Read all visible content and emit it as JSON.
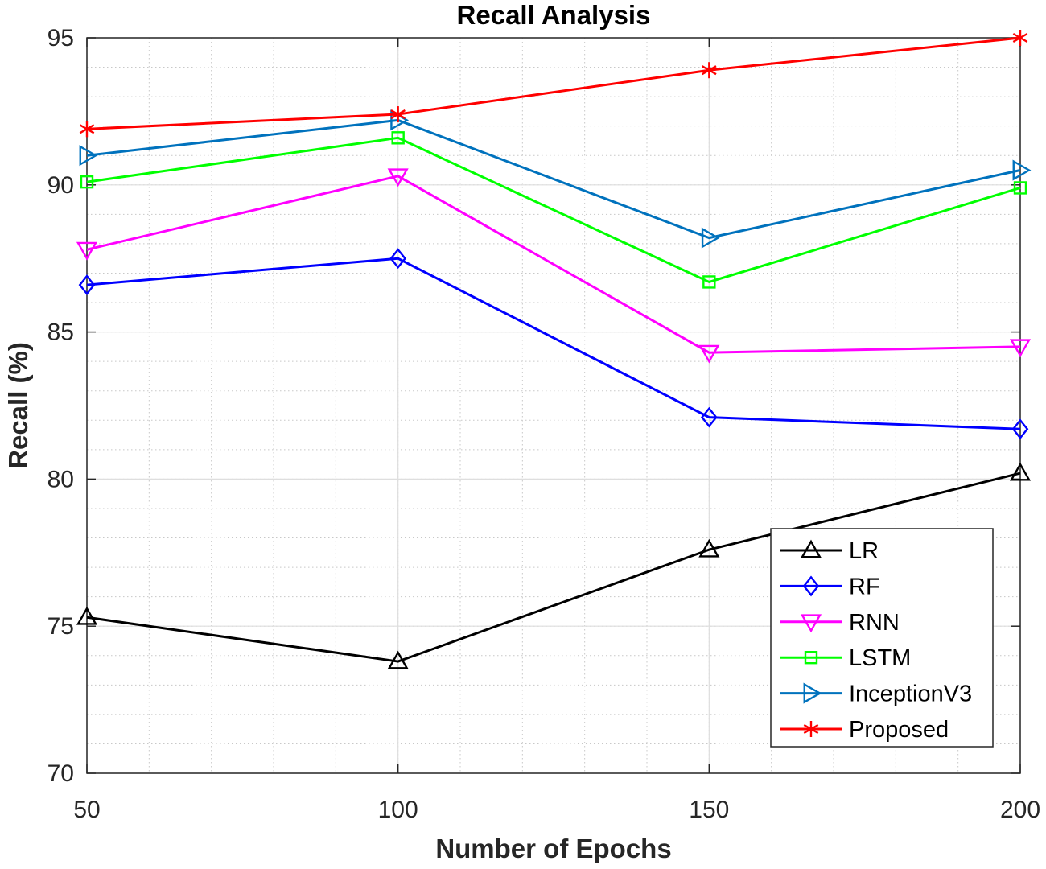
{
  "chart_data": {
    "type": "line",
    "title": "Recall Analysis",
    "xlabel": "Number of Epochs",
    "ylabel": "Recall (%)",
    "x": [
      50,
      100,
      150,
      200
    ],
    "xticks": [
      "50",
      "100",
      "150",
      "200"
    ],
    "yticks": [
      "70",
      "75",
      "80",
      "85",
      "90",
      "95"
    ],
    "xlim": [
      50,
      200
    ],
    "ylim": [
      70,
      95
    ],
    "grid": true,
    "minor_grid": true,
    "legend_position": "bottom-right",
    "series": [
      {
        "name": "LR",
        "color": "#000000",
        "marker": "triangle-up",
        "values": [
          75.3,
          73.8,
          77.6,
          80.2
        ]
      },
      {
        "name": "RF",
        "color": "#0000ff",
        "marker": "diamond",
        "values": [
          86.6,
          87.5,
          82.1,
          81.7
        ]
      },
      {
        "name": "RNN",
        "color": "#ff00ff",
        "marker": "triangle-down",
        "values": [
          87.8,
          90.3,
          84.3,
          84.5
        ]
      },
      {
        "name": "LSTM",
        "color": "#00ff00",
        "marker": "square",
        "values": [
          90.1,
          91.6,
          86.7,
          89.9
        ]
      },
      {
        "name": "InceptionV3",
        "color": "#0072bd",
        "marker": "triangle-right",
        "values": [
          91.0,
          92.2,
          88.2,
          90.5
        ]
      },
      {
        "name": "Proposed",
        "color": "#ff0000",
        "marker": "asterisk",
        "values": [
          91.9,
          92.4,
          93.9,
          95.0
        ]
      }
    ]
  }
}
